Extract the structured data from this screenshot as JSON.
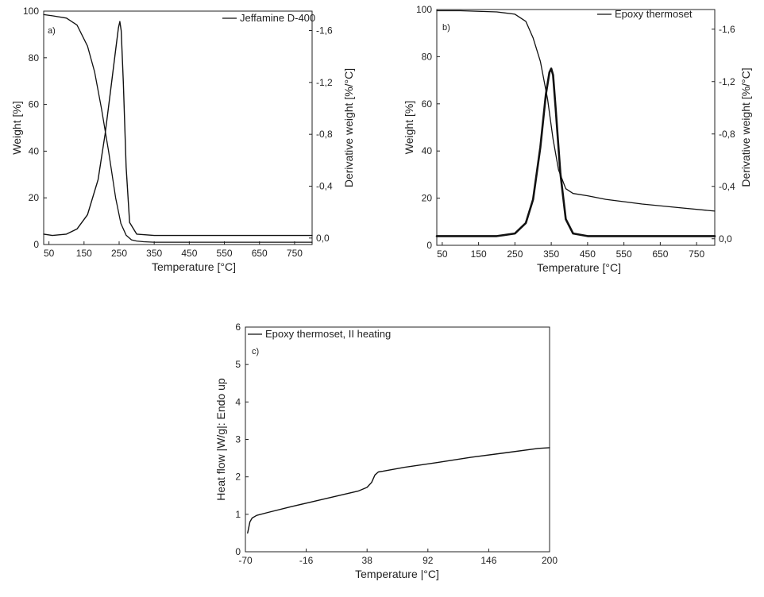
{
  "chart_data": [
    {
      "panel": "a)",
      "type": "line",
      "xlabel": "Temperature [°C]",
      "ylabel": "Weight [%]",
      "y2label": "Derivative weight [%/°C]",
      "xlim": [
        35,
        800
      ],
      "ylim": [
        0,
        100
      ],
      "y2lim": [
        0.05,
        -1.75
      ],
      "xticks": [
        50,
        150,
        250,
        350,
        450,
        550,
        650,
        750
      ],
      "yticks": [
        0,
        20,
        40,
        60,
        80,
        100
      ],
      "y2ticks": [
        0.0,
        -0.4,
        -0.8,
        -1.2,
        -1.6
      ],
      "y2ticklabels": [
        "0,0",
        "-0,4",
        "-0,8",
        "-1,2",
        "-1,6"
      ],
      "legend": [
        "Jeffamine D-400"
      ],
      "series": [
        {
          "axis": "left",
          "x": [
            35,
            60,
            100,
            130,
            160,
            180,
            200,
            220,
            240,
            255,
            270,
            285,
            300,
            320,
            350,
            400,
            500,
            600,
            700,
            800
          ],
          "y": [
            98.5,
            98,
            97,
            94,
            85,
            74,
            58,
            40,
            20,
            9,
            4,
            2,
            1.5,
            1.2,
            1,
            1,
            1,
            1,
            1,
            1
          ]
        },
        {
          "axis": "right",
          "x": [
            35,
            60,
            100,
            130,
            160,
            190,
            210,
            225,
            240,
            248,
            252,
            256,
            262,
            270,
            280,
            300,
            350,
            450,
            550,
            650,
            800
          ],
          "y": [
            -0.03,
            -0.02,
            -0.03,
            -0.07,
            -0.18,
            -0.45,
            -0.8,
            -1.12,
            -1.45,
            -1.62,
            -1.67,
            -1.6,
            -1.2,
            -0.55,
            -0.12,
            -0.03,
            -0.02,
            -0.02,
            -0.02,
            -0.02,
            -0.02
          ]
        }
      ]
    },
    {
      "panel": "b)",
      "type": "line",
      "xlabel": "Temperature [°C]",
      "ylabel": "Weight [%]",
      "y2label": "Derivative weight [%/°C]",
      "xlim": [
        35,
        800
      ],
      "ylim": [
        0,
        100
      ],
      "y2lim": [
        0.05,
        -1.75
      ],
      "xticks": [
        50,
        150,
        250,
        350,
        450,
        550,
        650,
        750
      ],
      "yticks": [
        0,
        20,
        40,
        60,
        80,
        100
      ],
      "y2ticks": [
        0.0,
        -0.4,
        -0.8,
        -1.2,
        -1.6
      ],
      "y2ticklabels": [
        "0,0",
        "-0,4",
        "-0,8",
        "-1,2",
        "-1,6"
      ],
      "legend": [
        "Epoxy thermoset"
      ],
      "series": [
        {
          "axis": "left",
          "x": [
            35,
            100,
            200,
            250,
            280,
            300,
            320,
            340,
            355,
            370,
            390,
            410,
            450,
            500,
            600,
            700,
            800
          ],
          "y": [
            99.5,
            99.5,
            99,
            98,
            95,
            88,
            78,
            62,
            45,
            32,
            24,
            22,
            21,
            19.5,
            17.5,
            16,
            14.5
          ]
        },
        {
          "axis": "right",
          "x": [
            35,
            100,
            200,
            250,
            280,
            300,
            320,
            335,
            345,
            350,
            355,
            362,
            375,
            390,
            410,
            450,
            550,
            650,
            800
          ],
          "y": [
            -0.02,
            -0.02,
            -0.02,
            -0.04,
            -0.12,
            -0.3,
            -0.7,
            -1.1,
            -1.27,
            -1.3,
            -1.25,
            -1.0,
            -0.5,
            -0.15,
            -0.04,
            -0.02,
            -0.02,
            -0.02,
            -0.02
          ]
        }
      ]
    },
    {
      "panel": "c)",
      "type": "line",
      "xlabel": "Temperature |°C]",
      "ylabel": "Heat flow |W/g|: Endo up",
      "xlim": [
        -70,
        200
      ],
      "ylim": [
        0,
        6
      ],
      "xticks": [
        -70,
        -16,
        38,
        92,
        146,
        200
      ],
      "yticks": [
        0,
        1,
        2,
        3,
        4,
        5,
        6
      ],
      "legend": [
        "Epoxy thermoset, II heating"
      ],
      "series": [
        {
          "axis": "left",
          "x": [
            -68,
            -66,
            -64,
            -60,
            -50,
            -30,
            -10,
            10,
            30,
            38,
            42,
            45,
            48,
            52,
            70,
            100,
            130,
            160,
            190,
            200
          ],
          "y": [
            0.5,
            0.8,
            0.9,
            0.97,
            1.05,
            1.2,
            1.34,
            1.48,
            1.62,
            1.72,
            1.85,
            2.05,
            2.13,
            2.15,
            2.25,
            2.38,
            2.52,
            2.64,
            2.76,
            2.78
          ]
        }
      ]
    }
  ]
}
